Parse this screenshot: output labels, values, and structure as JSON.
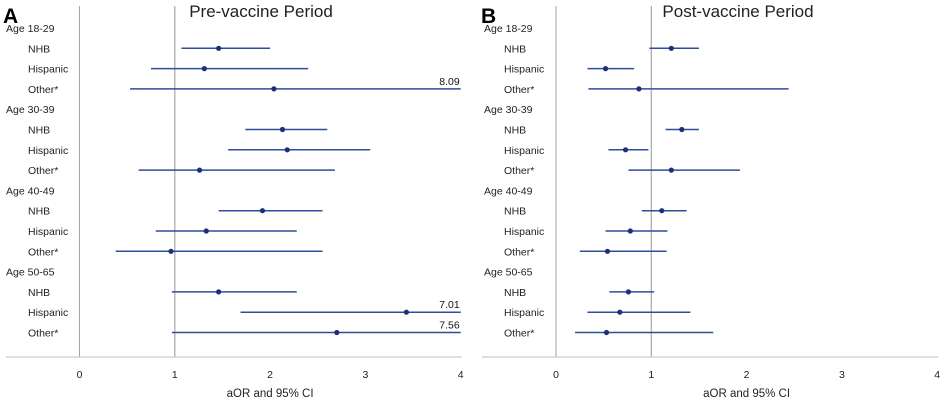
{
  "chart_data": [
    {
      "type": "forest",
      "panel_letter": "A",
      "title": "Pre-vaccine Period",
      "xlabel": "aOR and 95% CI",
      "xlim": [
        0,
        4
      ],
      "xticks": [
        0,
        1,
        2,
        3,
        4
      ],
      "reference_line": 1,
      "groups": [
        {
          "label": "Age 18-29",
          "rows": [
            {
              "label": "NHB",
              "est": 1.46,
              "lo": 1.07,
              "hi": 2.0
            },
            {
              "label": "Hispanic",
              "est": 1.31,
              "lo": 0.75,
              "hi": 2.4
            },
            {
              "label": "Other*",
              "est": 2.04,
              "lo": 0.53,
              "hi": 8.09,
              "annotation": "8.09"
            }
          ]
        },
        {
          "label": "Age 30-39",
          "rows": [
            {
              "label": "NHB",
              "est": 2.13,
              "lo": 1.74,
              "hi": 2.6
            },
            {
              "label": "Hispanic",
              "est": 2.18,
              "lo": 1.56,
              "hi": 3.05
            },
            {
              "label": "Other*",
              "est": 1.26,
              "lo": 0.62,
              "hi": 2.68
            }
          ]
        },
        {
          "label": "Age 40-49",
          "rows": [
            {
              "label": "NHB",
              "est": 1.92,
              "lo": 1.46,
              "hi": 2.55
            },
            {
              "label": "Hispanic",
              "est": 1.33,
              "lo": 0.8,
              "hi": 2.28
            },
            {
              "label": "Other*",
              "est": 0.96,
              "lo": 0.38,
              "hi": 2.55
            }
          ]
        },
        {
          "label": "Age 50-65",
          "rows": [
            {
              "label": "NHB",
              "est": 1.46,
              "lo": 0.97,
              "hi": 2.28
            },
            {
              "label": "Hispanic",
              "est": 3.43,
              "lo": 1.69,
              "hi": 7.01,
              "annotation": "7.01"
            },
            {
              "label": "Other*",
              "est": 2.7,
              "lo": 0.97,
              "hi": 7.56,
              "annotation": "7.56"
            }
          ]
        }
      ]
    },
    {
      "type": "forest",
      "panel_letter": "B",
      "title": "Post-vaccine Period",
      "xlabel": "aOR and 95% CI",
      "xlim": [
        0,
        4
      ],
      "xticks": [
        0,
        1,
        2,
        3,
        4
      ],
      "reference_line": 1,
      "groups": [
        {
          "label": "Age 18-29",
          "rows": [
            {
              "label": "NHB",
              "est": 1.21,
              "lo": 0.98,
              "hi": 1.5
            },
            {
              "label": "Hispanic",
              "est": 0.52,
              "lo": 0.33,
              "hi": 0.82
            },
            {
              "label": "Other*",
              "est": 0.87,
              "lo": 0.34,
              "hi": 2.44
            }
          ]
        },
        {
          "label": "Age 30-39",
          "rows": [
            {
              "label": "NHB",
              "est": 1.32,
              "lo": 1.15,
              "hi": 1.5
            },
            {
              "label": "Hispanic",
              "est": 0.73,
              "lo": 0.55,
              "hi": 0.97
            },
            {
              "label": "Other*",
              "est": 1.21,
              "lo": 0.76,
              "hi": 1.93
            }
          ]
        },
        {
          "label": "Age 40-49",
          "rows": [
            {
              "label": "NHB",
              "est": 1.11,
              "lo": 0.9,
              "hi": 1.37
            },
            {
              "label": "Hispanic",
              "est": 0.78,
              "lo": 0.52,
              "hi": 1.17
            },
            {
              "label": "Other*",
              "est": 0.54,
              "lo": 0.25,
              "hi": 1.16
            }
          ]
        },
        {
          "label": "Age 50-65",
          "rows": [
            {
              "label": "NHB",
              "est": 0.76,
              "lo": 0.56,
              "hi": 1.03
            },
            {
              "label": "Hispanic",
              "est": 0.67,
              "lo": 0.33,
              "hi": 1.41
            },
            {
              "label": "Other*",
              "est": 0.53,
              "lo": 0.2,
              "hi": 1.65
            }
          ]
        }
      ]
    }
  ]
}
